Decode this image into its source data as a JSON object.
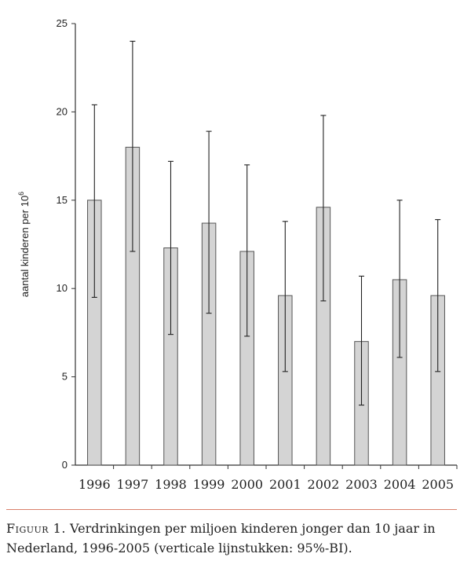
{
  "chart_data": {
    "type": "bar",
    "categories": [
      "1996",
      "1997",
      "1998",
      "1999",
      "2000",
      "2001",
      "2002",
      "2003",
      "2004",
      "2005"
    ],
    "values": [
      15.0,
      18.0,
      12.3,
      13.7,
      12.1,
      9.6,
      14.6,
      7.0,
      10.5,
      9.6
    ],
    "ci_low": [
      9.5,
      12.1,
      7.4,
      8.6,
      7.3,
      5.3,
      9.3,
      3.4,
      6.1,
      5.3
    ],
    "ci_high": [
      20.4,
      24.0,
      17.2,
      18.9,
      17.0,
      13.8,
      19.8,
      10.7,
      15.0,
      13.9
    ],
    "ylim": [
      0,
      25
    ],
    "yticks": [
      0,
      5,
      10,
      15,
      20,
      25
    ],
    "ylabel": "aantal kinderen per 10",
    "ylabel_sup": "6",
    "xlabel": "",
    "bar_color": "#d4d4d4",
    "bar_stroke": "#555555",
    "grid": false
  },
  "caption": {
    "label": "Figuur 1.",
    "text": " Verdrinkingen per miljoen kinderen jonger dan 10 jaar in Nederland, 1996-2005 (verticale lijnstukken: 95%-BI)."
  },
  "divider_color": "#d9806a"
}
